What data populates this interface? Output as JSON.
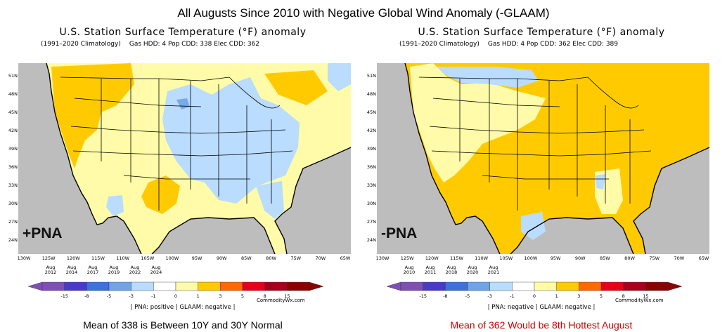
{
  "title": "All Augusts Since 2010 with Negative Global Wind Anomaly (-GLAAM)",
  "colors": {
    "land_gray": "#bdbdbd",
    "pale_yellow": "#fffba8",
    "gold": "#ffcb00",
    "light_blue": "#b9dcff",
    "med_blue": "#7aa9e8",
    "caption_left": "#000000",
    "caption_right": "#cc0000"
  },
  "colorbar": {
    "labels": [
      "-15",
      "-8",
      "-5",
      "-3",
      "-1",
      "0",
      "1",
      "3",
      "5",
      "8",
      "15"
    ],
    "colors": [
      "#7e4fb5",
      "#4a3ac7",
      "#3d72d9",
      "#6fa3ea",
      "#b9dcff",
      "#ffffff",
      "#fffba8",
      "#ffcb00",
      "#ff6a00",
      "#e8001a",
      "#a6001c",
      "#8b0000"
    ]
  },
  "left": {
    "title": "U.S. Station Surface Temperature (°F) anomaly",
    "subtitle_clim": "(1991–2020 Climatology)",
    "subtitle_stats": "Gas HDD: 4 Pop CDD: 338 Elec CDD: 362",
    "lat_labels": [
      "51N",
      "48N",
      "45N",
      "42N",
      "39N",
      "36N",
      "33N",
      "30N",
      "27N",
      "24N"
    ],
    "lon_labels": [
      "130W",
      "125W",
      "120W",
      "115W",
      "110W",
      "105W",
      "100W",
      "95W",
      "90W",
      "85W",
      "80W",
      "75W",
      "70W",
      "65W"
    ],
    "pna_label": "+PNA",
    "years": [
      [
        "Aug",
        "2012"
      ],
      [
        "Aug",
        "2014"
      ],
      [
        "Aug",
        "2017"
      ],
      [
        "Aug",
        "2019"
      ],
      [
        "Aug",
        "2022"
      ],
      [
        "Aug",
        "2024"
      ]
    ],
    "credit": "CommodityWx.com",
    "indices": "| PNA: positive | GLAAM: negative |",
    "caption": "Mean of 338 is Between 10Y and 30Y Normal"
  },
  "right": {
    "title": "U.S. Station Surface Temperature (°F) anomaly",
    "subtitle_clim": "(1991–2020 Climatology)",
    "subtitle_stats": "Gas HDD: 4 Pop CDD: 362 Elec CDD: 389",
    "lat_labels": [
      "51N",
      "48N",
      "45N",
      "42N",
      "39N",
      "36N",
      "33N",
      "30N",
      "27N",
      "24N"
    ],
    "lon_labels": [
      "130W",
      "125W",
      "120W",
      "115W",
      "110W",
      "105W",
      "100W",
      "95W",
      "90W",
      "85W",
      "80W",
      "75W",
      "70W",
      "65W"
    ],
    "pna_label": "-PNA",
    "years": [
      [
        "Aug",
        "2010"
      ],
      [
        "Aug",
        "2011"
      ],
      [
        "Aug",
        "2018"
      ],
      [
        "Aug",
        "2020"
      ],
      [
        "Aug",
        "2021"
      ]
    ],
    "credit": "CommodityWx.com",
    "indices": "| PNA: negative | GLAAM: negative |",
    "caption": "Mean of 362 Would be 8th Hottest August"
  }
}
